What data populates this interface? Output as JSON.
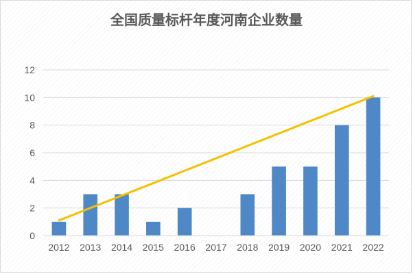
{
  "chart_data": {
    "type": "bar",
    "title": "全国质量标杆年度河南企业数量",
    "categories": [
      "2012",
      "2013",
      "2014",
      "2015",
      "2016",
      "2017",
      "2018",
      "2019",
      "2020",
      "2021",
      "2022"
    ],
    "series": [
      {
        "values": [
          1,
          3,
          3,
          1,
          2,
          0,
          3,
          5,
          5,
          8,
          10
        ]
      }
    ],
    "trendline": {
      "type": "linear",
      "start": 1.1,
      "end": 10.1
    },
    "xlabel": "",
    "ylabel": "",
    "ylim": [
      0,
      12
    ],
    "yticks": [
      "0",
      "2",
      "4",
      "6",
      "8",
      "10",
      "12"
    ],
    "grid": true,
    "legend": "none",
    "colors": {
      "bar": "#4f88c6",
      "trendline": "#f5c000",
      "grid": "#d9d9d9",
      "text": "#595959"
    }
  }
}
